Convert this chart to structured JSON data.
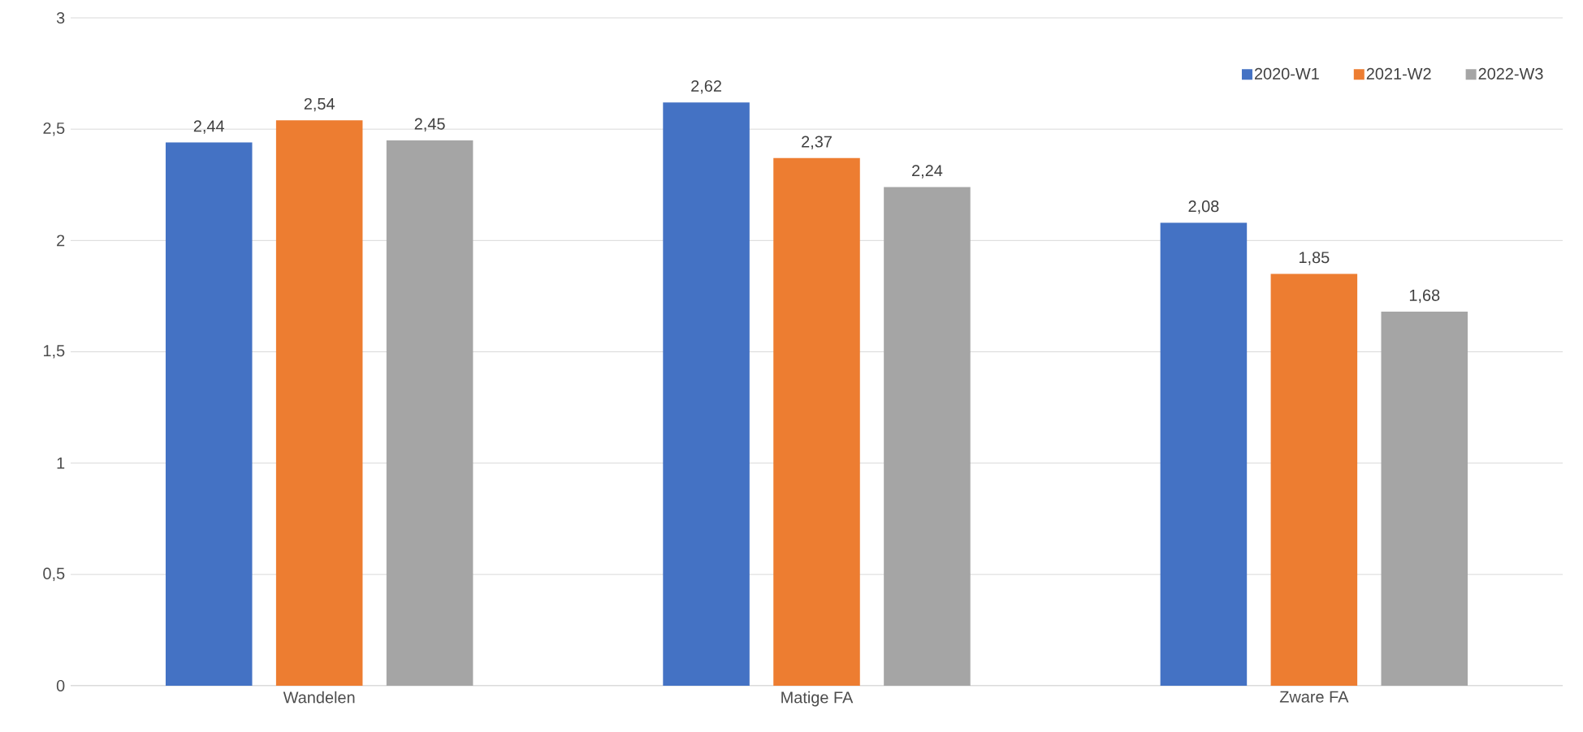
{
  "chart_data": {
    "type": "bar",
    "categories": [
      "Wandelen",
      "Matige FA",
      "Zware FA"
    ],
    "series": [
      {
        "name": "2020-W1",
        "color": "#4472c4",
        "values": [
          2.44,
          2.62,
          2.08
        ],
        "value_labels": [
          "2,44",
          "2,62",
          "2,08"
        ]
      },
      {
        "name": "2021-W2",
        "color": "#ed7d31",
        "values": [
          2.54,
          2.37,
          1.85
        ],
        "value_labels": [
          "2,54",
          "2,37",
          "1,85"
        ]
      },
      {
        "name": "2022-W3",
        "color": "#a5a5a5",
        "values": [
          2.45,
          2.24,
          1.68
        ],
        "value_labels": [
          "2,45",
          "2,24",
          "1,68"
        ]
      }
    ],
    "ylim": [
      0,
      3
    ],
    "yticks": [
      0,
      {
        "value": 0.5,
        "label": "0,5"
      },
      1,
      {
        "value": 1.5,
        "label": "1,5"
      },
      2,
      {
        "value": 2.5,
        "label": "2,5"
      },
      3
    ],
    "grid": "y",
    "legend": "top right"
  }
}
